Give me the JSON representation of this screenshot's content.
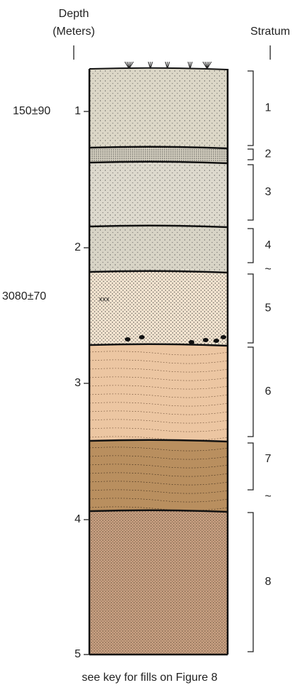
{
  "header": {
    "depth_title": "Depth",
    "depth_unit": "(Meters)",
    "stratum_title": "Stratum"
  },
  "depth_ticks": [
    "1",
    "2",
    "3",
    "4",
    "5"
  ],
  "dates": [
    "150±90",
    "3080±70"
  ],
  "strata": [
    {
      "label": "1"
    },
    {
      "label": "2"
    },
    {
      "label": "3"
    },
    {
      "label": "4",
      "marker": "~"
    },
    {
      "label": "5"
    },
    {
      "label": "6"
    },
    {
      "label": "7",
      "marker": "~"
    },
    {
      "label": "8"
    }
  ],
  "caption": "see key for fills on Figure 8"
}
